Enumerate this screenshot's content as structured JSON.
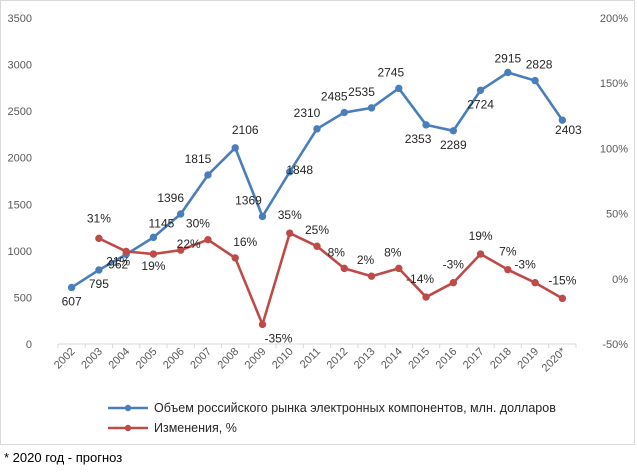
{
  "chart_data": {
    "type": "line",
    "categories": [
      "2002",
      "2003",
      "2004",
      "2005",
      "2006",
      "2007",
      "2008",
      "2009",
      "2010",
      "2011",
      "2012",
      "2013",
      "2014",
      "2015",
      "2016",
      "2017",
      "2018",
      "2019",
      "2020*"
    ],
    "series": [
      {
        "name": "Объем российского рынка электронных компонентов, млн. долларов",
        "axis": "left",
        "color": "#4a7ebb",
        "values": [
          607,
          795,
          962,
          1145,
          1396,
          1815,
          2106,
          1369,
          1848,
          2310,
          2485,
          2535,
          2745,
          2353,
          2289,
          2724,
          2915,
          2828,
          2403
        ],
        "point_labels": [
          "607",
          "795",
          "962",
          "1145",
          "1396",
          "1815",
          "2106",
          "1369",
          "1848",
          "2310",
          "2485",
          "2535",
          "2745",
          "2353",
          "2289",
          "2724",
          "2915",
          "2828",
          "2403"
        ]
      },
      {
        "name": "Изменения, %",
        "axis": "right",
        "color": "#be4b48",
        "values": [
          null,
          31,
          21,
          19,
          22,
          30,
          16,
          -35,
          35,
          25,
          8,
          2,
          8,
          -14,
          -3,
          19,
          7,
          -3,
          -15
        ],
        "point_labels": [
          "",
          "31%",
          "21%",
          "19%",
          "22%",
          "30%",
          "16%",
          "-35%",
          "35%",
          "25%",
          "8%",
          "2%",
          "8%",
          "-14%",
          "-3%",
          "19%",
          "7%",
          "-3%",
          "-15%"
        ]
      }
    ],
    "y_left": {
      "ylim": [
        0,
        3500
      ],
      "ticks": [
        "0",
        "500",
        "1000",
        "1500",
        "2000",
        "2500",
        "3000",
        "3500"
      ]
    },
    "y_right": {
      "ylim": [
        -50,
        200
      ],
      "ticks": [
        "-50%",
        "0%",
        "50%",
        "100%",
        "150%",
        "200%"
      ]
    },
    "grid": false,
    "legend_position": "bottom"
  },
  "footnote": "* 2020 год - прогноз"
}
